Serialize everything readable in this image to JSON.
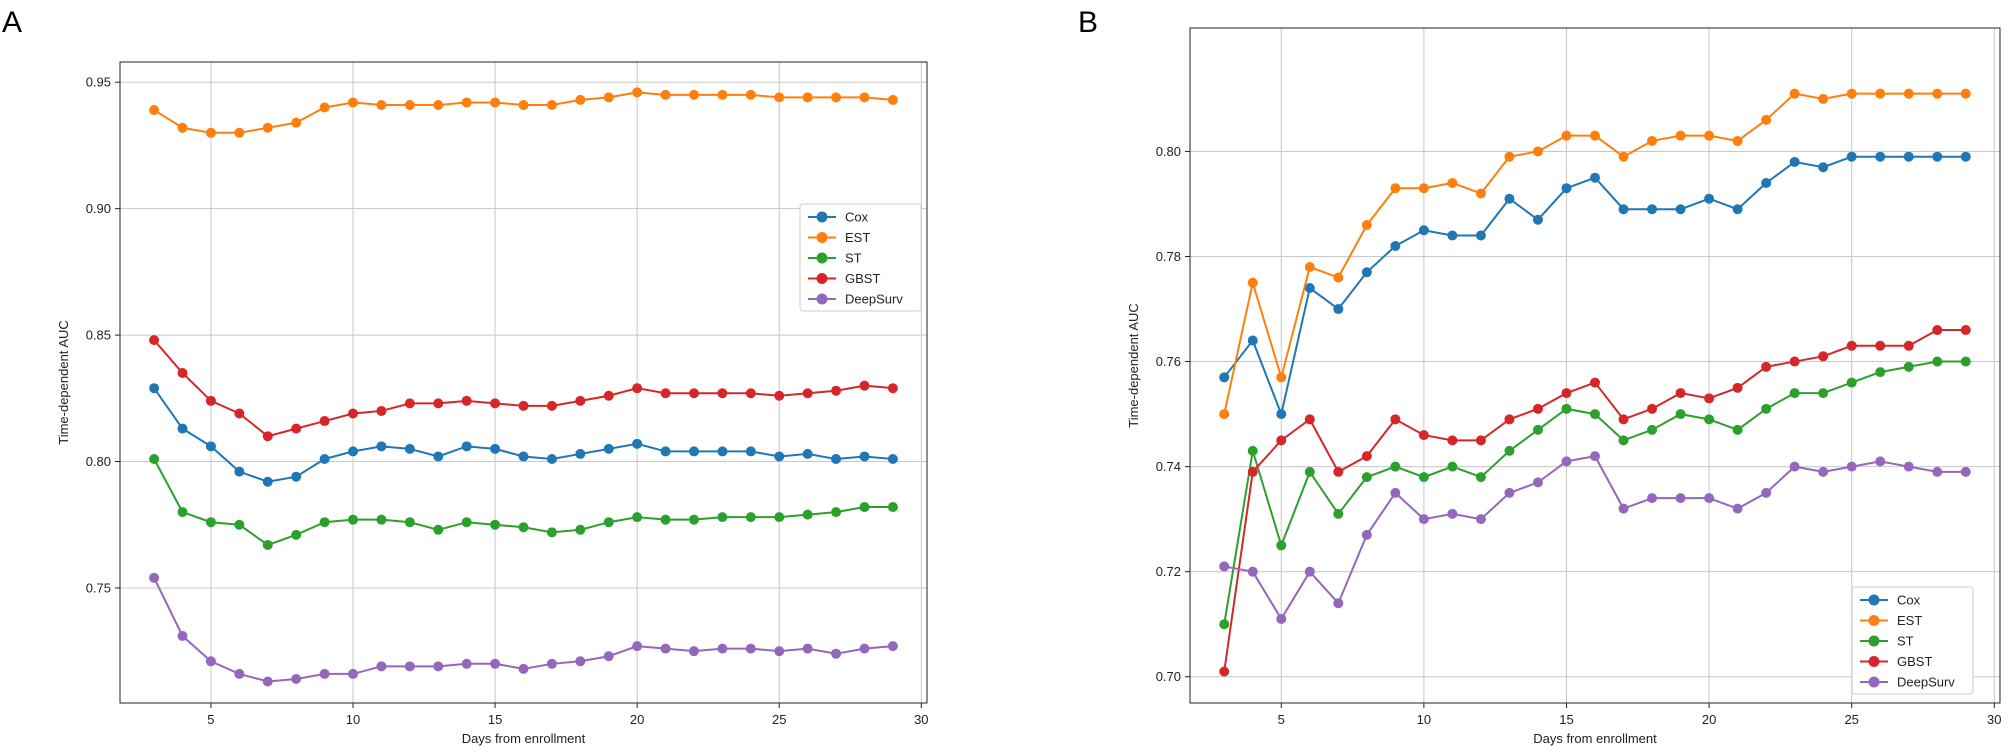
{
  "chart_data": [
    {
      "panel": "A",
      "type": "line",
      "xlabel": "Days from enrollment",
      "ylabel": "Time-dependent AUC",
      "xlim": [
        1.8,
        30.2
      ],
      "ylim": [
        0.7045,
        0.958
      ],
      "xticks": [
        5,
        10,
        15,
        20,
        25,
        30
      ],
      "yticks": [
        0.75,
        0.8,
        0.85,
        0.9,
        0.95
      ],
      "ytick_labels": [
        "0.75",
        "0.80",
        "0.85",
        "0.90",
        "0.95"
      ],
      "xtick_labels": [
        "5",
        "10",
        "15",
        "20",
        "25",
        "30"
      ],
      "grid": true,
      "legend": "center-right",
      "x": [
        3,
        4,
        5,
        6,
        7,
        8,
        9,
        10,
        11,
        12,
        13,
        14,
        15,
        16,
        17,
        18,
        19,
        20,
        21,
        22,
        23,
        24,
        25,
        26,
        27,
        28,
        29
      ],
      "series": [
        {
          "name": "Cox",
          "color": "#1f77b4",
          "values": [
            0.829,
            0.813,
            0.806,
            0.796,
            0.792,
            0.794,
            0.801,
            0.804,
            0.806,
            0.805,
            0.802,
            0.806,
            0.805,
            0.802,
            0.801,
            0.803,
            0.805,
            0.807,
            0.804,
            0.804,
            0.804,
            0.804,
            0.802,
            0.803,
            0.801,
            0.802,
            0.801
          ]
        },
        {
          "name": "EST",
          "color": "#ff7f0e",
          "values": [
            0.939,
            0.932,
            0.93,
            0.93,
            0.932,
            0.934,
            0.94,
            0.942,
            0.941,
            0.941,
            0.941,
            0.942,
            0.942,
            0.941,
            0.941,
            0.943,
            0.944,
            0.946,
            0.945,
            0.945,
            0.945,
            0.945,
            0.944,
            0.944,
            0.944,
            0.944,
            0.943
          ]
        },
        {
          "name": "ST",
          "color": "#2ca02c",
          "values": [
            0.801,
            0.78,
            0.776,
            0.775,
            0.767,
            0.771,
            0.776,
            0.777,
            0.777,
            0.776,
            0.773,
            0.776,
            0.775,
            0.774,
            0.772,
            0.773,
            0.776,
            0.778,
            0.777,
            0.777,
            0.778,
            0.778,
            0.778,
            0.779,
            0.78,
            0.782,
            0.782
          ]
        },
        {
          "name": "GBST",
          "color": "#d62728",
          "values": [
            0.848,
            0.835,
            0.824,
            0.819,
            0.81,
            0.813,
            0.816,
            0.819,
            0.82,
            0.823,
            0.823,
            0.824,
            0.823,
            0.822,
            0.822,
            0.824,
            0.826,
            0.829,
            0.827,
            0.827,
            0.827,
            0.827,
            0.826,
            0.827,
            0.828,
            0.83,
            0.829
          ]
        },
        {
          "name": "DeepSurv",
          "color": "#9467bd",
          "values": [
            0.754,
            0.731,
            0.721,
            0.716,
            0.713,
            0.714,
            0.716,
            0.716,
            0.719,
            0.719,
            0.719,
            0.72,
            0.72,
            0.718,
            0.72,
            0.721,
            0.723,
            0.727,
            0.726,
            0.725,
            0.726,
            0.726,
            0.725,
            0.726,
            0.724,
            0.726,
            0.727
          ]
        }
      ]
    },
    {
      "panel": "B",
      "type": "line",
      "xlabel": "Days from enrollment",
      "ylabel": "Time-dependent AUC",
      "xlim": [
        1.8,
        30.2
      ],
      "ylim": [
        0.695,
        0.8235
      ],
      "xticks": [
        5,
        10,
        15,
        20,
        25,
        30
      ],
      "yticks": [
        0.7,
        0.72,
        0.74,
        0.76,
        0.78,
        0.8
      ],
      "ytick_labels": [
        "0.70",
        "0.72",
        "0.74",
        "0.76",
        "0.78",
        "0.80"
      ],
      "xtick_labels": [
        "5",
        "10",
        "15",
        "20",
        "25",
        "30"
      ],
      "grid": true,
      "legend": "bottom-right",
      "x": [
        3,
        4,
        5,
        6,
        7,
        8,
        9,
        10,
        11,
        12,
        13,
        14,
        15,
        16,
        17,
        18,
        19,
        20,
        21,
        22,
        23,
        24,
        25,
        26,
        27,
        28,
        29
      ],
      "series": [
        {
          "name": "Cox",
          "color": "#1f77b4",
          "values": [
            0.757,
            0.764,
            0.75,
            0.774,
            0.77,
            0.777,
            0.782,
            0.785,
            0.784,
            0.784,
            0.791,
            0.787,
            0.793,
            0.795,
            0.789,
            0.789,
            0.789,
            0.791,
            0.789,
            0.794,
            0.798,
            0.797,
            0.799,
            0.799,
            0.799,
            0.799,
            0.799
          ]
        },
        {
          "name": "EST",
          "color": "#ff7f0e",
          "values": [
            0.75,
            0.775,
            0.757,
            0.778,
            0.776,
            0.786,
            0.793,
            0.793,
            0.794,
            0.792,
            0.799,
            0.8,
            0.803,
            0.803,
            0.799,
            0.802,
            0.803,
            0.803,
            0.802,
            0.806,
            0.811,
            0.81,
            0.811,
            0.811,
            0.811,
            0.811,
            0.811
          ]
        },
        {
          "name": "ST",
          "color": "#2ca02c",
          "values": [
            0.71,
            0.743,
            0.725,
            0.739,
            0.731,
            0.738,
            0.74,
            0.738,
            0.74,
            0.738,
            0.743,
            0.747,
            0.751,
            0.75,
            0.745,
            0.747,
            0.75,
            0.749,
            0.747,
            0.751,
            0.754,
            0.754,
            0.756,
            0.758,
            0.759,
            0.76,
            0.76
          ]
        },
        {
          "name": "GBST",
          "color": "#d62728",
          "values": [
            0.701,
            0.739,
            0.745,
            0.749,
            0.739,
            0.742,
            0.749,
            0.746,
            0.745,
            0.745,
            0.749,
            0.751,
            0.754,
            0.756,
            0.749,
            0.751,
            0.754,
            0.753,
            0.755,
            0.759,
            0.76,
            0.761,
            0.763,
            0.763,
            0.763,
            0.766,
            0.766
          ]
        },
        {
          "name": "DeepSurv",
          "color": "#9467bd",
          "values": [
            0.721,
            0.72,
            0.711,
            0.72,
            0.714,
            0.727,
            0.735,
            0.73,
            0.731,
            0.73,
            0.735,
            0.737,
            0.741,
            0.742,
            0.732,
            0.734,
            0.734,
            0.734,
            0.732,
            0.735,
            0.74,
            0.739,
            0.74,
            0.741,
            0.74,
            0.739,
            0.739
          ]
        }
      ]
    }
  ]
}
